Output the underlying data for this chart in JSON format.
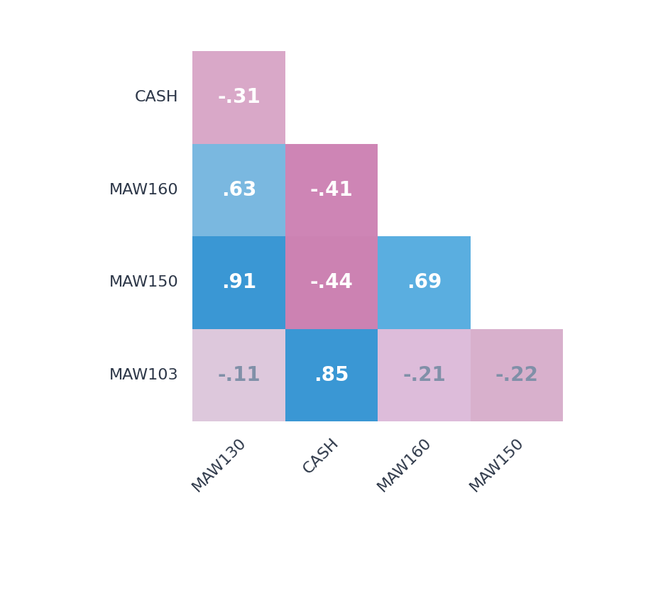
{
  "row_labels": [
    "CASH",
    "MAW160",
    "MAW150",
    "MAW103"
  ],
  "col_labels": [
    "MAW130",
    "CASH",
    "MAW160",
    "MAW150"
  ],
  "display_labels": [
    [
      "-.31",
      null,
      null,
      null
    ],
    [
      ".63",
      "-.41",
      null,
      null
    ],
    [
      ".91",
      "-.44",
      ".69",
      null
    ],
    [
      "-.11",
      ".85",
      "-.21",
      "-.22"
    ]
  ],
  "numeric_values": [
    [
      -0.31,
      null,
      null,
      null
    ],
    [
      0.63,
      -0.41,
      null,
      null
    ],
    [
      0.91,
      -0.44,
      0.69,
      null
    ],
    [
      -0.11,
      0.85,
      -0.21,
      -0.22
    ]
  ],
  "cell_colors": {
    "0_0": "#d9a8c8",
    "1_0": "#7ab8e0",
    "1_1": "#ce85b5",
    "2_0": "#3a97d4",
    "2_1": "#cc82b2",
    "2_2": "#5aaee0",
    "3_0": "#ddc8dc",
    "3_1": "#3a97d4",
    "3_2": "#ddbcda",
    "3_3": "#d8b0cc"
  },
  "background_color": "#ffffff",
  "text_color_dark": "#2d3748",
  "text_color_white": "#ffffff",
  "font_size_values": 20,
  "font_size_labels": 16
}
